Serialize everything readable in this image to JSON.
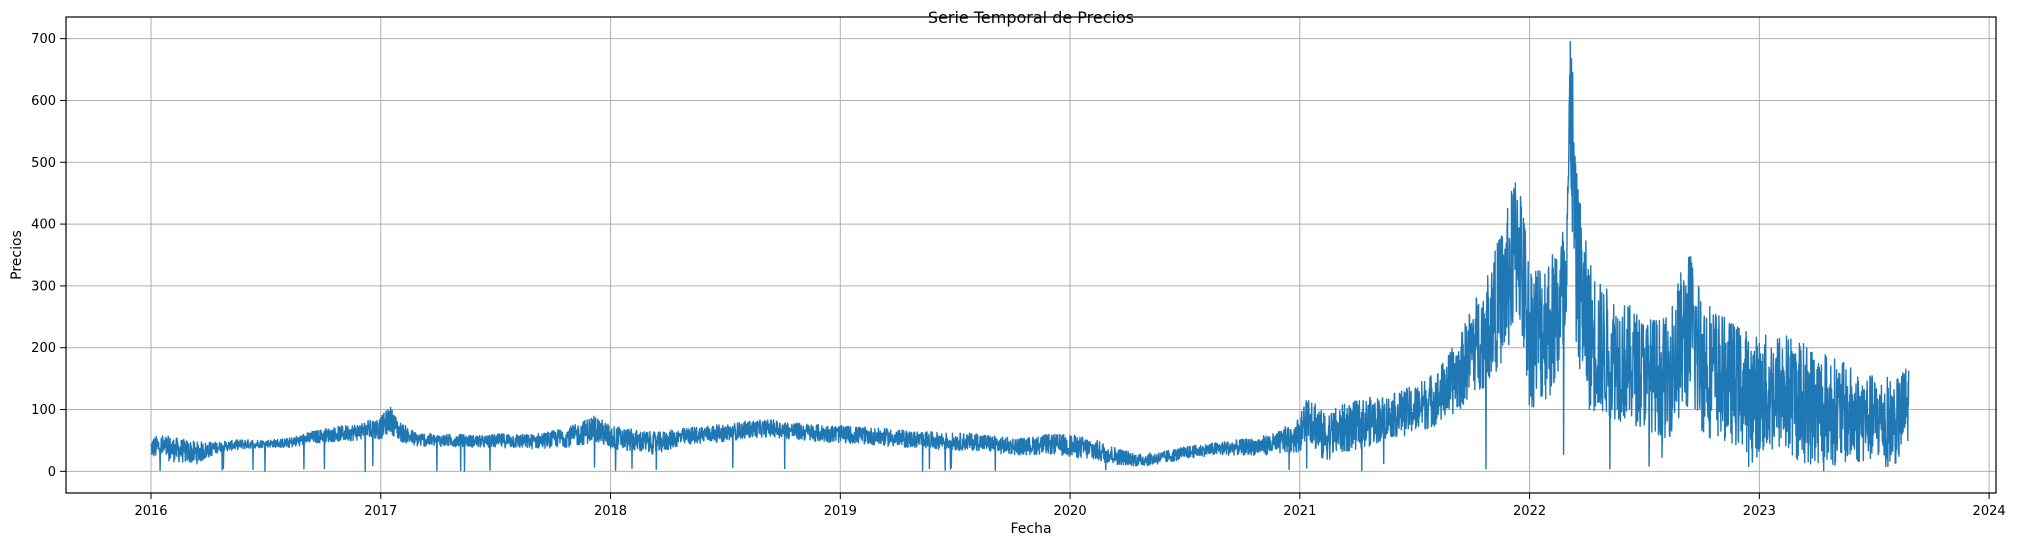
{
  "chart_data": {
    "type": "line",
    "title": "Serie Temporal de Precios",
    "xlabel": "Fecha",
    "ylabel": "Precios",
    "xlim": [
      2015.63,
      2024.03
    ],
    "ylim": [
      -35,
      735
    ],
    "grid": true,
    "legend": "none",
    "colors": {
      "line": "#1f77b4",
      "grid": "#b0b0b0",
      "axis": "#000000"
    },
    "x_ticks": [
      2016,
      2017,
      2018,
      2019,
      2020,
      2021,
      2022,
      2023,
      2024
    ],
    "x_tick_labels": [
      "2016",
      "2017",
      "2018",
      "2019",
      "2020",
      "2021",
      "2022",
      "2023",
      "2024"
    ],
    "y_ticks": [
      0,
      100,
      200,
      300,
      400,
      500,
      600,
      700
    ],
    "y_tick_labels": [
      "0",
      "100",
      "200",
      "300",
      "400",
      "500",
      "600",
      "700"
    ],
    "series": [
      {
        "x_unit": "decimal year",
        "x": [
          2016.0,
          2016.04,
          2016.1,
          2016.2,
          2016.3,
          2016.4,
          2016.5,
          2016.6,
          2016.7,
          2016.8,
          2016.9,
          2017.0,
          2017.04,
          2017.08,
          2017.15,
          2017.25,
          2017.35,
          2017.45,
          2017.55,
          2017.65,
          2017.75,
          2017.85,
          2017.93,
          2018.0,
          2018.1,
          2018.2,
          2018.3,
          2018.4,
          2018.5,
          2018.6,
          2018.7,
          2018.8,
          2018.9,
          2019.0,
          2019.1,
          2019.2,
          2019.3,
          2019.4,
          2019.5,
          2019.6,
          2019.7,
          2019.8,
          2019.9,
          2020.0,
          2020.1,
          2020.2,
          2020.3,
          2020.4,
          2020.5,
          2020.6,
          2020.7,
          2020.8,
          2020.9,
          2021.0,
          2021.04,
          2021.1,
          2021.2,
          2021.3,
          2021.4,
          2021.5,
          2021.6,
          2021.7,
          2021.75,
          2021.8,
          2021.85,
          2021.9,
          2021.95,
          2022.0,
          2022.05,
          2022.1,
          2022.15,
          2022.18,
          2022.2,
          2022.25,
          2022.3,
          2022.4,
          2022.5,
          2022.6,
          2022.65,
          2022.7,
          2022.75,
          2022.8,
          2022.85,
          2022.9,
          2023.0,
          2023.1,
          2023.2,
          2023.3,
          2023.4,
          2023.5,
          2023.6,
          2023.65
        ],
        "y": [
          38,
          40,
          35,
          30,
          40,
          44,
          45,
          46,
          55,
          60,
          64,
          70,
          85,
          65,
          52,
          50,
          50,
          48,
          50,
          48,
          52,
          58,
          70,
          55,
          50,
          45,
          55,
          60,
          62,
          68,
          70,
          65,
          62,
          60,
          58,
          55,
          52,
          50,
          48,
          48,
          42,
          40,
          44,
          42,
          35,
          25,
          18,
          22,
          30,
          35,
          38,
          40,
          45,
          60,
          95,
          55,
          70,
          80,
          90,
          100,
          120,
          160,
          200,
          220,
          260,
          300,
          380,
          220,
          230,
          240,
          280,
          600,
          350,
          230,
          200,
          180,
          160,
          150,
          200,
          230,
          180,
          160,
          150,
          140,
          120,
          130,
          110,
          100,
          90,
          85,
          80,
          110
        ],
        "spread": [
          16,
          20,
          20,
          18,
          8,
          8,
          6,
          8,
          10,
          12,
          14,
          18,
          22,
          16,
          12,
          10,
          10,
          10,
          12,
          12,
          14,
          18,
          22,
          20,
          18,
          18,
          14,
          14,
          14,
          14,
          14,
          14,
          14,
          14,
          14,
          14,
          14,
          14,
          14,
          14,
          14,
          14,
          16,
          18,
          18,
          14,
          10,
          10,
          10,
          10,
          12,
          14,
          18,
          28,
          45,
          40,
          40,
          40,
          35,
          40,
          45,
          60,
          75,
          85,
          100,
          120,
          130,
          120,
          120,
          120,
          130,
          160,
          150,
          130,
          110,
          100,
          90,
          100,
          120,
          130,
          120,
          110,
          100,
          100,
          100,
          100,
          100,
          90,
          80,
          70,
          70,
          70
        ]
      }
    ]
  }
}
